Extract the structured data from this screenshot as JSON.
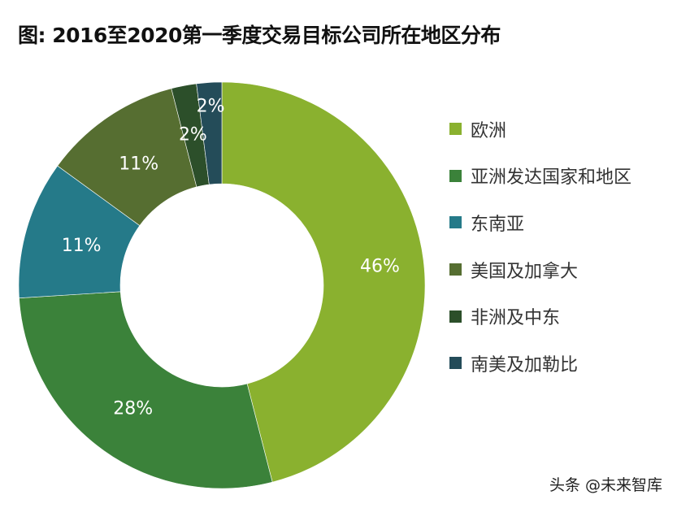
{
  "title": "图: 2016至2020第一季度交易目标公司所在地区分布",
  "watermark": "头条 @未来智库",
  "chart_data": {
    "type": "pie",
    "variant": "donut",
    "title": "图: 2016至2020第一季度交易目标公司所在地区分布",
    "categories": [
      "欧洲",
      "亚洲发达国家和地区",
      "东南亚",
      "美国及加拿大",
      "非洲及中东",
      "南美及加勒比"
    ],
    "values": [
      46,
      28,
      11,
      11,
      2,
      2
    ],
    "labels": [
      "46%",
      "28%",
      "11%",
      "11%",
      "2%",
      "2%"
    ],
    "colors": [
      "#8AB12F",
      "#3B823A",
      "#257A89",
      "#566E31",
      "#2C4F2A",
      "#244C59"
    ],
    "legend_position": "right",
    "start_angle": "top, clockwise"
  },
  "legend": {
    "items": [
      {
        "label": "欧洲",
        "color": "#8AB12F"
      },
      {
        "label": "亚洲发达国家和地区",
        "color": "#3B823A"
      },
      {
        "label": "东南亚",
        "color": "#257A89"
      },
      {
        "label": "美国及加拿大",
        "color": "#566E31"
      },
      {
        "label": "非洲及中东",
        "color": "#2C4F2A"
      },
      {
        "label": "南美及加勒比",
        "color": "#244C59"
      }
    ]
  }
}
